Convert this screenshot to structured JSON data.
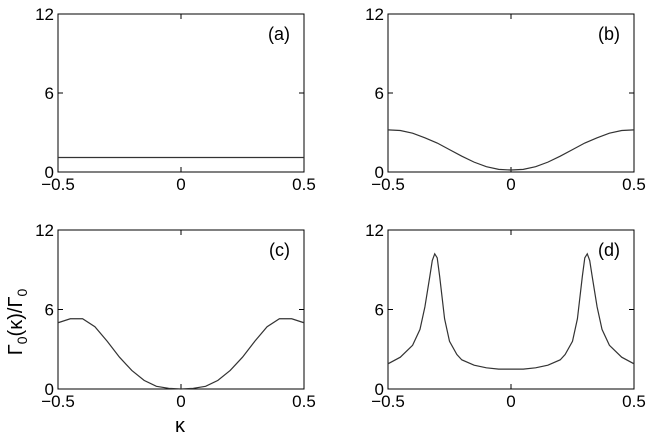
{
  "figure": {
    "ylabel": {
      "main": "Γ",
      "sub1": "0",
      "paren": "(κ)/Γ",
      "sub2": "0"
    },
    "xlabel": "κ"
  },
  "chart_data": [
    {
      "panel": "(a)",
      "type": "line",
      "xlim": [
        -0.5,
        0.5
      ],
      "ylim": [
        0,
        12
      ],
      "xticks": [
        -0.5,
        0,
        0.5
      ],
      "xtick_labels": [
        "−0.5",
        "0",
        "0.5"
      ],
      "yticks": [
        0,
        6,
        12
      ],
      "ytick_labels": [
        "0",
        "6",
        "12"
      ],
      "grid": false,
      "series": [
        {
          "x": [
            -0.5,
            -0.25,
            0,
            0.25,
            0.5
          ],
          "y": [
            1.1,
            1.1,
            1.1,
            1.1,
            1.1
          ]
        }
      ]
    },
    {
      "panel": "(b)",
      "type": "line",
      "xlim": [
        -0.5,
        0.5
      ],
      "ylim": [
        0,
        12
      ],
      "xticks": [
        -0.5,
        0,
        0.5
      ],
      "xtick_labels": [
        "−0.5",
        "0",
        "0.5"
      ],
      "yticks": [
        0,
        6,
        12
      ],
      "ytick_labels": [
        "0",
        "6",
        "12"
      ],
      "grid": false,
      "series": [
        {
          "x": [
            -0.5,
            -0.45,
            -0.4,
            -0.35,
            -0.3,
            -0.25,
            -0.2,
            -0.15,
            -0.1,
            -0.05,
            0,
            0.05,
            0.1,
            0.15,
            0.2,
            0.25,
            0.3,
            0.35,
            0.4,
            0.45,
            0.5
          ],
          "y": [
            3.2,
            3.15,
            2.95,
            2.6,
            2.2,
            1.7,
            1.2,
            0.75,
            0.4,
            0.2,
            0.15,
            0.2,
            0.4,
            0.75,
            1.2,
            1.7,
            2.2,
            2.6,
            2.95,
            3.15,
            3.2
          ]
        }
      ]
    },
    {
      "panel": "(c)",
      "type": "line",
      "xlim": [
        -0.5,
        0.5
      ],
      "ylim": [
        0,
        12
      ],
      "xticks": [
        -0.5,
        0,
        0.5
      ],
      "xtick_labels": [
        "−0.5",
        "0",
        "0.5"
      ],
      "yticks": [
        0,
        6,
        12
      ],
      "ytick_labels": [
        "0",
        "6",
        "12"
      ],
      "grid": false,
      "series": [
        {
          "x": [
            -0.5,
            -0.45,
            -0.4,
            -0.35,
            -0.3,
            -0.25,
            -0.2,
            -0.15,
            -0.1,
            -0.05,
            0,
            0.05,
            0.1,
            0.15,
            0.2,
            0.25,
            0.3,
            0.35,
            0.4,
            0.45,
            0.5
          ],
          "y": [
            5.0,
            5.3,
            5.3,
            4.7,
            3.6,
            2.4,
            1.4,
            0.65,
            0.2,
            0.05,
            0.0,
            0.05,
            0.2,
            0.65,
            1.4,
            2.4,
            3.6,
            4.7,
            5.3,
            5.3,
            5.0
          ]
        }
      ]
    },
    {
      "panel": "(d)",
      "type": "line",
      "xlim": [
        -0.5,
        0.5
      ],
      "ylim": [
        0,
        12
      ],
      "xticks": [
        -0.5,
        0,
        0.5
      ],
      "xtick_labels": [
        "−0.5",
        "0",
        "0.5"
      ],
      "yticks": [
        0,
        6,
        12
      ],
      "ytick_labels": [
        "0",
        "6",
        "12"
      ],
      "grid": false,
      "series": [
        {
          "x": [
            -0.5,
            -0.45,
            -0.4,
            -0.37,
            -0.35,
            -0.33,
            -0.32,
            -0.31,
            -0.3,
            -0.29,
            -0.28,
            -0.27,
            -0.25,
            -0.22,
            -0.2,
            -0.15,
            -0.1,
            -0.05,
            0,
            0.05,
            0.1,
            0.15,
            0.2,
            0.22,
            0.25,
            0.27,
            0.28,
            0.29,
            0.3,
            0.31,
            0.32,
            0.33,
            0.35,
            0.37,
            0.4,
            0.45,
            0.5
          ],
          "y": [
            1.9,
            2.4,
            3.3,
            4.5,
            6.2,
            8.5,
            9.7,
            10.2,
            9.9,
            8.5,
            6.9,
            5.3,
            3.6,
            2.6,
            2.2,
            1.8,
            1.6,
            1.5,
            1.5,
            1.5,
            1.6,
            1.8,
            2.2,
            2.6,
            3.6,
            5.3,
            6.9,
            8.5,
            9.9,
            10.2,
            9.7,
            8.5,
            6.2,
            4.5,
            3.3,
            2.4,
            1.9
          ]
        }
      ]
    }
  ]
}
